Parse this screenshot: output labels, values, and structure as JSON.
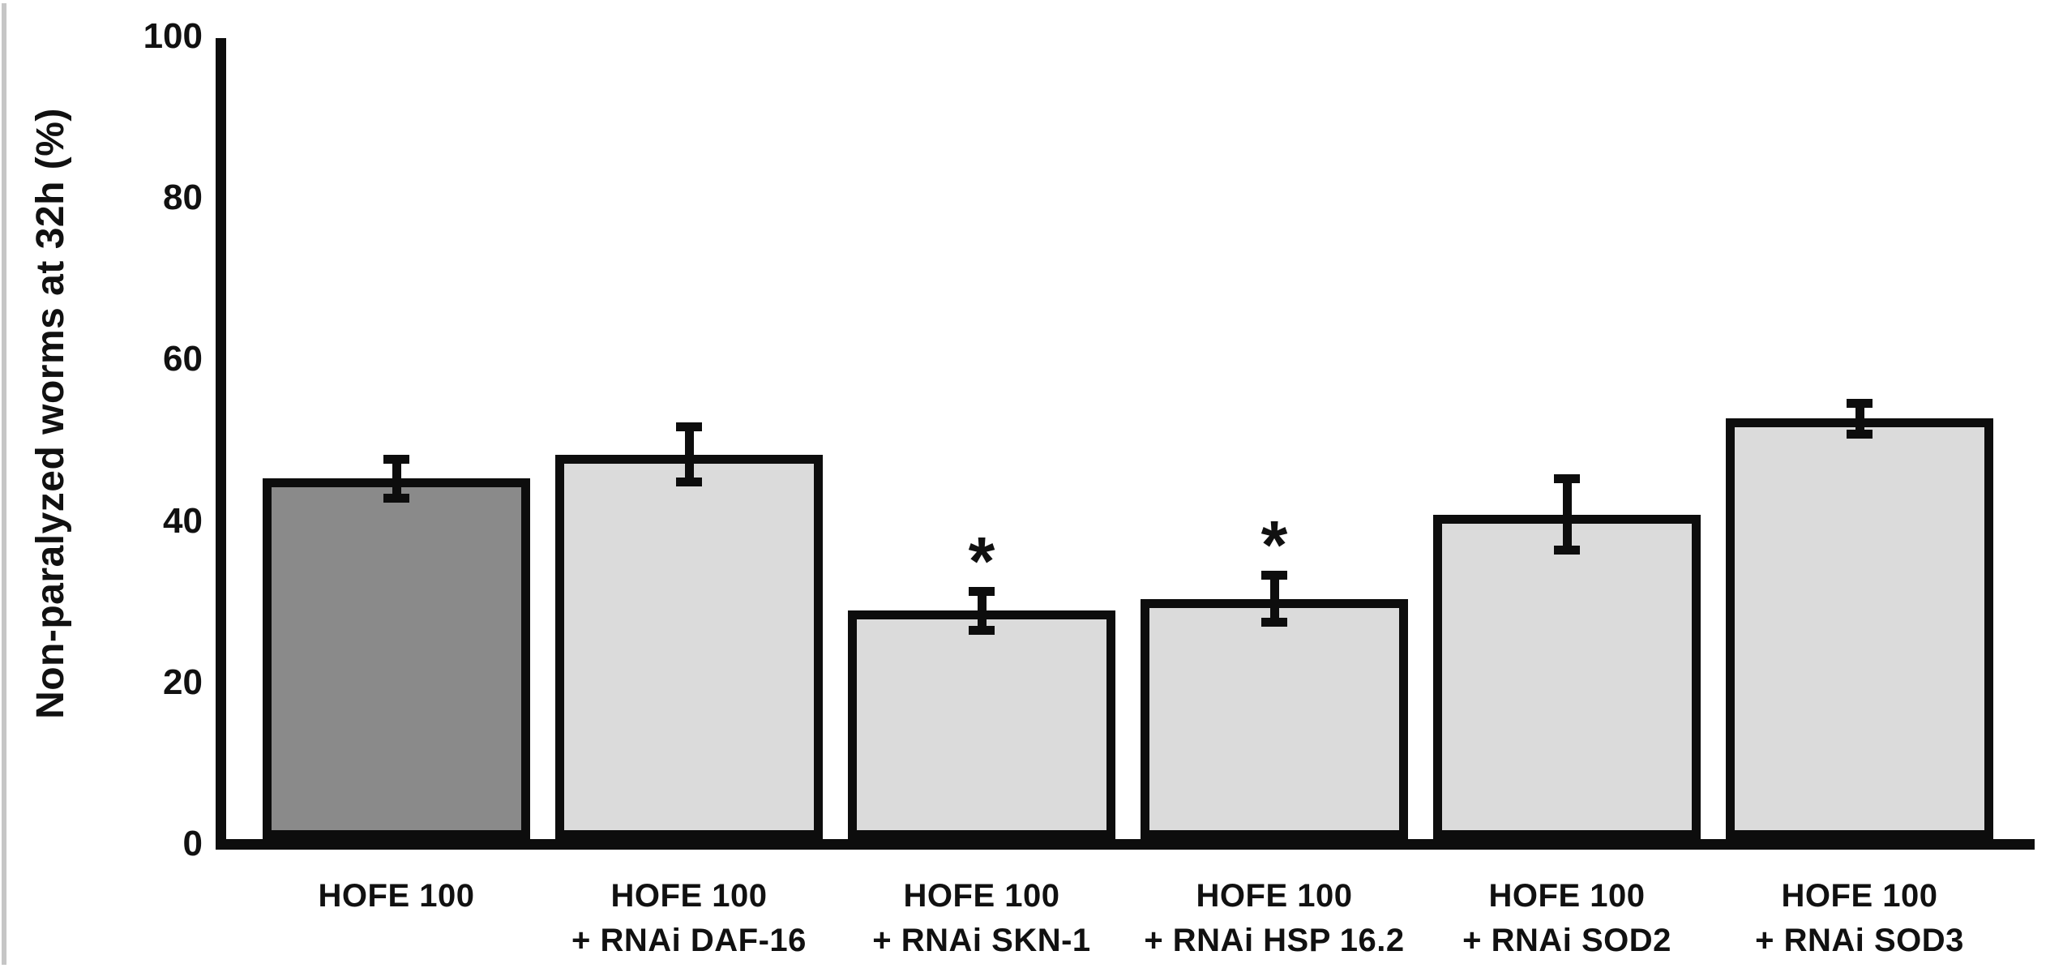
{
  "chart_data": {
    "type": "bar",
    "title": "",
    "xlabel": "",
    "ylabel": "Non-paralyzed worms at 32h (%)",
    "ylim": [
      0,
      100
    ],
    "yticks": [
      0,
      20,
      40,
      60,
      80,
      100
    ],
    "grid": false,
    "legend": false,
    "significance_marker": "*",
    "categories": [
      "HOFE 100",
      "HOFE 100 + RNAi DAF-16",
      "HOFE 100 + RNAi SKN-1",
      "HOFE 100 + RNAi HSP 16.2",
      "HOFE 100 + RNAi SOD2",
      "HOFE 100 + RNAi SOD3"
    ],
    "values": [
      45,
      48,
      28.5,
      30,
      40.5,
      52.5
    ],
    "errors": [
      3,
      4,
      3,
      3.5,
      5,
      2.5
    ],
    "significance": [
      false,
      false,
      true,
      true,
      false,
      false
    ],
    "bars": [
      {
        "label_line1": "HOFE 100",
        "label_line2": "",
        "value": 45,
        "error": 3,
        "significant": false,
        "fill": "#8a8a8a"
      },
      {
        "label_line1": "HOFE 100",
        "label_line2": "+ RNAi DAF-16",
        "value": 48,
        "error": 4,
        "significant": false,
        "fill": "#dbdbdb"
      },
      {
        "label_line1": "HOFE 100",
        "label_line2": "+ RNAi SKN-1",
        "value": 28.5,
        "error": 3,
        "significant": true,
        "fill": "#dbdbdb"
      },
      {
        "label_line1": "HOFE 100",
        "label_line2": "+ RNAi HSP 16.2",
        "value": 30,
        "error": 3.5,
        "significant": true,
        "fill": "#dbdbdb"
      },
      {
        "label_line1": "HOFE 100",
        "label_line2": "+ RNAi SOD2",
        "value": 40.5,
        "error": 5,
        "significant": false,
        "fill": "#dbdbdb"
      },
      {
        "label_line1": "HOFE 100",
        "label_line2": "+ RNAi SOD3",
        "value": 52.5,
        "error": 2.5,
        "significant": false,
        "fill": "#dbdbdb"
      }
    ]
  },
  "colors": {
    "background": "#ffffff",
    "axis": "#0d0d0d",
    "bar_outline": "#0d0d0d",
    "bar_fill_control": "#8a8a8a",
    "bar_fill_rnai": "#dbdbdb",
    "text": "#111111",
    "left_edge_artifact": "#c6c6c6"
  }
}
